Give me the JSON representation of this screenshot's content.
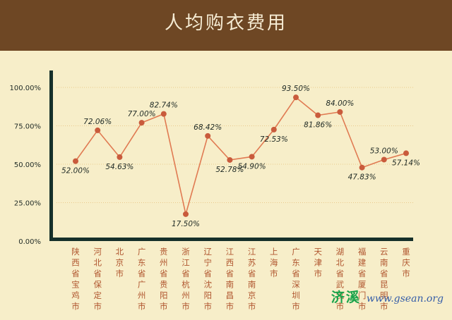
{
  "title": "人均购衣费用",
  "watermark": {
    "cn": "济溪",
    "url": "www.gsean.org"
  },
  "colors": {
    "background": "#f7eec9",
    "header": "#6e4724",
    "axis": "#16302a",
    "line": "#e07a52",
    "point": "#c95b3c",
    "grid": "#e9c98c",
    "label": "#1f2a25",
    "category": "#b0562f"
  },
  "chart_data": {
    "type": "line",
    "title": "人均购衣费用",
    "categories": [
      "陕西省宝鸡市",
      "河北省保定市",
      "北京市",
      "广东省广州市",
      "贵州省贵阳市",
      "浙江省杭州市",
      "辽宁省沈阳市",
      "江西省南昌市",
      "江苏省南京市",
      "上海市",
      "广东省深圳市",
      "天津市",
      "湖北省武汉市",
      "福建省厦门市",
      "云南省昆明市",
      "重庆市"
    ],
    "values": [
      52.0,
      72.06,
      54.63,
      77.0,
      82.74,
      17.5,
      68.42,
      52.78,
      54.9,
      72.53,
      93.5,
      81.86,
      84.0,
      47.83,
      53.0,
      57.14
    ],
    "labels": [
      "52.00%",
      "72.06%",
      "54.63%",
      "77.00%",
      "82.74%",
      "17.50%",
      "68.42%",
      "52.78%",
      "54.90%",
      "72.53%",
      "93.50%",
      "81.86%",
      "84.00%",
      "47.83%",
      "53.00%",
      "57.14%"
    ],
    "label_position": [
      "below",
      "above",
      "below",
      "above",
      "above",
      "below",
      "above",
      "below",
      "below",
      "below",
      "above",
      "below",
      "above",
      "below",
      "above",
      "below"
    ],
    "ylim": [
      0,
      100
    ],
    "yticks": [
      0,
      25,
      50,
      75,
      100
    ],
    "ytick_labels": [
      "0.00%",
      "25.00%",
      "50.00%",
      "75.00%",
      "100.00%"
    ],
    "grid": "horizontal",
    "xlabel": "",
    "ylabel": ""
  }
}
